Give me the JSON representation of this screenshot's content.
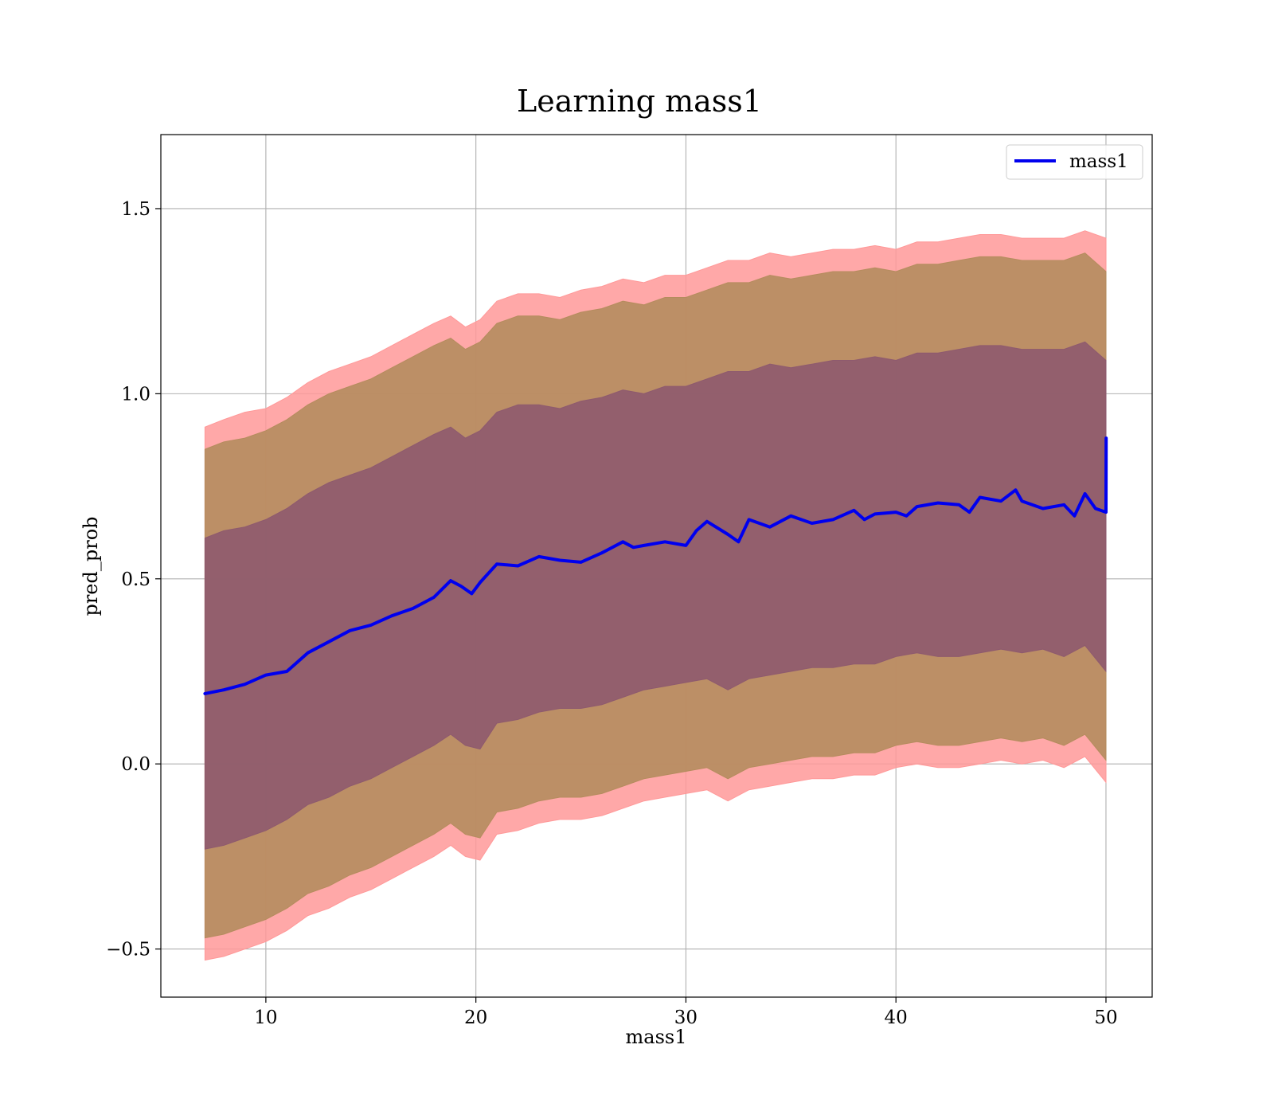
{
  "chart_data": {
    "type": "line",
    "title": "Learning mass1",
    "xlabel": "mass1",
    "ylabel": "pred_prob",
    "xlim": [
      5,
      52.2
    ],
    "ylim": [
      -0.63,
      1.7
    ],
    "xticks": [
      10,
      20,
      30,
      40,
      50
    ],
    "xtick_labels": [
      "10",
      "20",
      "30",
      "40",
      "50"
    ],
    "yticks": [
      -0.5,
      0.0,
      0.5,
      1.0,
      1.5
    ],
    "ytick_labels": [
      "−0.5",
      "0.0",
      "0.5",
      "1.0",
      "1.5"
    ],
    "grid": true,
    "legend": {
      "placement": "top-right",
      "entries": [
        "mass1"
      ]
    },
    "colors": {
      "line": "#0000ee",
      "band_outer": "#ff9999",
      "band_middle": "#b58c5e",
      "band_inner": "#8e5a6e"
    },
    "series": [
      {
        "name": "mass1",
        "x": [
          7.1,
          8,
          9,
          10,
          11,
          12,
          13,
          14,
          15,
          16,
          17,
          18,
          18.8,
          19.3,
          19.8,
          20.2,
          21,
          22,
          23,
          24,
          25,
          26,
          27,
          27.5,
          28,
          29,
          30,
          30.5,
          31,
          32,
          32.5,
          33,
          34,
          35,
          36,
          37,
          38,
          38.5,
          39,
          40,
          40.5,
          41,
          42,
          43,
          43.5,
          44,
          45,
          45.7,
          46,
          47,
          48,
          48.5,
          49,
          49.5,
          50,
          50.01
        ],
        "y": [
          0.19,
          0.2,
          0.215,
          0.24,
          0.25,
          0.3,
          0.33,
          0.36,
          0.375,
          0.4,
          0.42,
          0.45,
          0.495,
          0.48,
          0.46,
          0.49,
          0.54,
          0.535,
          0.56,
          0.55,
          0.545,
          0.57,
          0.6,
          0.585,
          0.59,
          0.6,
          0.59,
          0.63,
          0.655,
          0.62,
          0.6,
          0.66,
          0.64,
          0.67,
          0.65,
          0.66,
          0.685,
          0.66,
          0.675,
          0.68,
          0.67,
          0.695,
          0.705,
          0.7,
          0.68,
          0.72,
          0.71,
          0.74,
          0.71,
          0.69,
          0.7,
          0.67,
          0.73,
          0.69,
          0.68,
          0.88
        ]
      }
    ],
    "bands": [
      {
        "x": [
          7.1,
          8,
          9,
          10,
          11,
          12,
          13,
          14,
          15,
          16,
          17,
          18,
          18.8,
          19.5,
          20.2,
          21,
          22,
          23,
          24,
          25,
          26,
          27,
          28,
          29,
          30,
          31,
          32,
          33,
          34,
          35,
          36,
          37,
          38,
          39,
          40,
          41,
          42,
          43,
          44,
          45,
          46,
          47,
          48,
          49,
          50
        ],
        "upper": [
          0.91,
          0.93,
          0.95,
          0.96,
          0.99,
          1.03,
          1.06,
          1.08,
          1.1,
          1.13,
          1.16,
          1.19,
          1.21,
          1.18,
          1.2,
          1.25,
          1.27,
          1.27,
          1.26,
          1.28,
          1.29,
          1.31,
          1.3,
          1.32,
          1.32,
          1.34,
          1.36,
          1.36,
          1.38,
          1.37,
          1.38,
          1.39,
          1.39,
          1.4,
          1.39,
          1.41,
          1.41,
          1.42,
          1.43,
          1.43,
          1.42,
          1.42,
          1.42,
          1.44,
          1.42
        ],
        "lower": [
          -0.53,
          -0.52,
          -0.5,
          -0.48,
          -0.45,
          -0.41,
          -0.39,
          -0.36,
          -0.34,
          -0.31,
          -0.28,
          -0.25,
          -0.22,
          -0.25,
          -0.26,
          -0.19,
          -0.18,
          -0.16,
          -0.15,
          -0.15,
          -0.14,
          -0.12,
          -0.1,
          -0.09,
          -0.08,
          -0.07,
          -0.1,
          -0.07,
          -0.06,
          -0.05,
          -0.04,
          -0.04,
          -0.03,
          -0.03,
          -0.01,
          0.0,
          -0.01,
          -0.01,
          0.0,
          0.01,
          0.0,
          0.01,
          -0.01,
          0.02,
          -0.05
        ]
      },
      {
        "x": [
          7.1,
          8,
          9,
          10,
          11,
          12,
          13,
          14,
          15,
          16,
          17,
          18,
          18.8,
          19.5,
          20.2,
          21,
          22,
          23,
          24,
          25,
          26,
          27,
          28,
          29,
          30,
          31,
          32,
          33,
          34,
          35,
          36,
          37,
          38,
          39,
          40,
          41,
          42,
          43,
          44,
          45,
          46,
          47,
          48,
          49,
          50
        ],
        "upper": [
          0.85,
          0.87,
          0.88,
          0.9,
          0.93,
          0.97,
          1.0,
          1.02,
          1.04,
          1.07,
          1.1,
          1.13,
          1.15,
          1.12,
          1.14,
          1.19,
          1.21,
          1.21,
          1.2,
          1.22,
          1.23,
          1.25,
          1.24,
          1.26,
          1.26,
          1.28,
          1.3,
          1.3,
          1.32,
          1.31,
          1.32,
          1.33,
          1.33,
          1.34,
          1.33,
          1.35,
          1.35,
          1.36,
          1.37,
          1.37,
          1.36,
          1.36,
          1.36,
          1.38,
          1.33
        ],
        "lower": [
          -0.47,
          -0.46,
          -0.44,
          -0.42,
          -0.39,
          -0.35,
          -0.33,
          -0.3,
          -0.28,
          -0.25,
          -0.22,
          -0.19,
          -0.16,
          -0.19,
          -0.2,
          -0.13,
          -0.12,
          -0.1,
          -0.09,
          -0.09,
          -0.08,
          -0.06,
          -0.04,
          -0.03,
          -0.02,
          -0.01,
          -0.04,
          -0.01,
          0.0,
          0.01,
          0.02,
          0.02,
          0.03,
          0.03,
          0.05,
          0.06,
          0.05,
          0.05,
          0.06,
          0.07,
          0.06,
          0.07,
          0.05,
          0.08,
          0.01
        ]
      },
      {
        "x": [
          7.1,
          8,
          9,
          10,
          11,
          12,
          13,
          14,
          15,
          16,
          17,
          18,
          18.8,
          19.5,
          20.2,
          21,
          22,
          23,
          24,
          25,
          26,
          27,
          28,
          29,
          30,
          31,
          32,
          33,
          34,
          35,
          36,
          37,
          38,
          39,
          40,
          41,
          42,
          43,
          44,
          45,
          46,
          47,
          48,
          49,
          50
        ],
        "upper": [
          0.61,
          0.63,
          0.64,
          0.66,
          0.69,
          0.73,
          0.76,
          0.78,
          0.8,
          0.83,
          0.86,
          0.89,
          0.91,
          0.88,
          0.9,
          0.95,
          0.97,
          0.97,
          0.96,
          0.98,
          0.99,
          1.01,
          1.0,
          1.02,
          1.02,
          1.04,
          1.06,
          1.06,
          1.08,
          1.07,
          1.08,
          1.09,
          1.09,
          1.1,
          1.09,
          1.11,
          1.11,
          1.12,
          1.13,
          1.13,
          1.12,
          1.12,
          1.12,
          1.14,
          1.09
        ],
        "lower": [
          -0.23,
          -0.22,
          -0.2,
          -0.18,
          -0.15,
          -0.11,
          -0.09,
          -0.06,
          -0.04,
          -0.01,
          0.02,
          0.05,
          0.08,
          0.05,
          0.04,
          0.11,
          0.12,
          0.14,
          0.15,
          0.15,
          0.16,
          0.18,
          0.2,
          0.21,
          0.22,
          0.23,
          0.2,
          0.23,
          0.24,
          0.25,
          0.26,
          0.26,
          0.27,
          0.27,
          0.29,
          0.3,
          0.29,
          0.29,
          0.3,
          0.31,
          0.3,
          0.31,
          0.29,
          0.32,
          0.25
        ]
      }
    ]
  }
}
